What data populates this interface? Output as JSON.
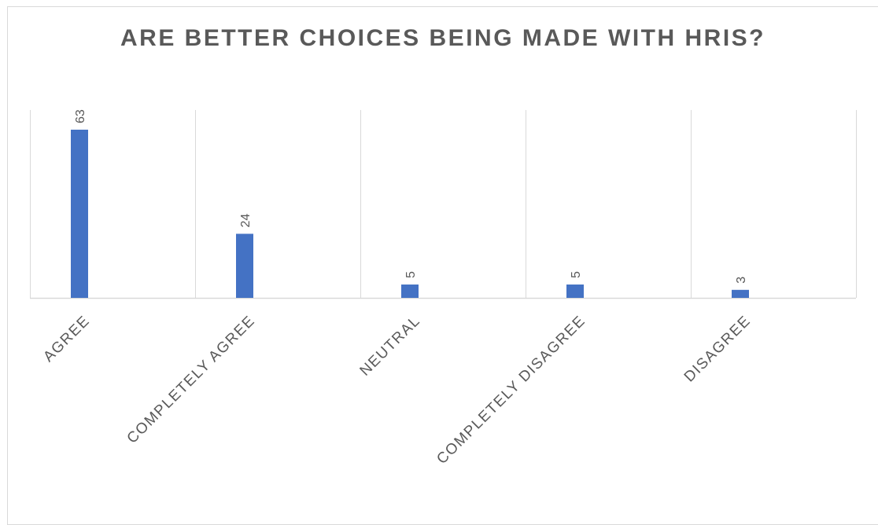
{
  "chart_data": {
    "type": "bar",
    "title": "ARE BETTER CHOICES BEING MADE WITH HRIS?",
    "categories": [
      "AGREE",
      "COMPLETELY AGREE",
      "NEUTRAL",
      "COMPLETELY DISAGREE",
      "DISAGREE"
    ],
    "series": [
      {
        "values": [
          63,
          24,
          5,
          5,
          3
        ]
      }
    ],
    "ylim": [
      0,
      70
    ],
    "grid": "vertical separators",
    "legend": "none",
    "data_labels": true,
    "bar_color": "#4472c4",
    "text_color": "#595959",
    "gridline_color": "#d9d9d9"
  }
}
